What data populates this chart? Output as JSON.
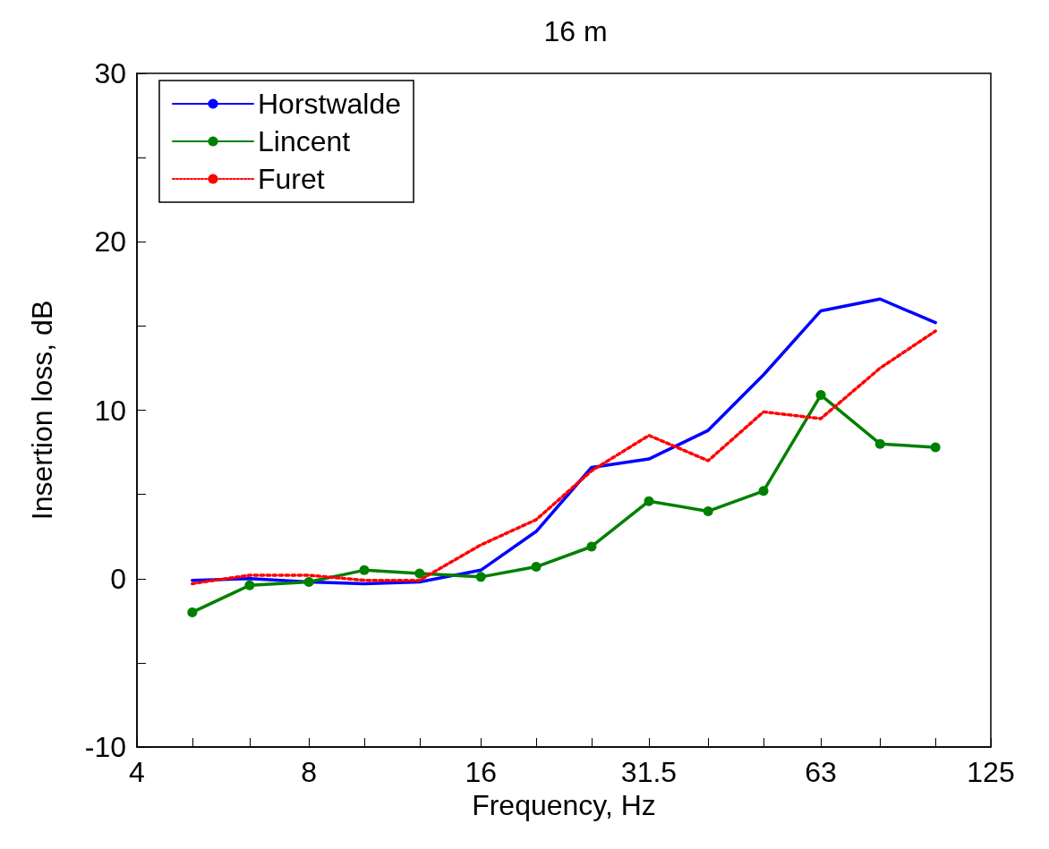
{
  "chart_data": {
    "type": "line",
    "title": "16 m",
    "xlabel": "Frequency, Hz",
    "ylabel": "Insertion loss, dB",
    "x": [
      5,
      6.3,
      8,
      10,
      12.5,
      16,
      20,
      25,
      31.5,
      40,
      50,
      63,
      80,
      100
    ],
    "series": [
      {
        "name": "Horstwalde",
        "color": "#0000ff",
        "line_style": "solid",
        "marker": "none",
        "values": [
          -0.1,
          0,
          -0.2,
          -0.3,
          -0.2,
          0.5,
          2.8,
          6.6,
          7.1,
          8.8,
          12.1,
          15.9,
          16.6,
          15.2
        ]
      },
      {
        "name": "Lincent",
        "color": "#008000",
        "line_style": "solid",
        "marker": "circle",
        "values": [
          -2.0,
          -0.4,
          -0.2,
          0.5,
          0.3,
          0.1,
          0.7,
          1.9,
          4.6,
          4.0,
          5.2,
          10.9,
          8.0,
          7.8
        ]
      },
      {
        "name": "Furet",
        "color": "#ff0000",
        "line_style": "dotted",
        "marker": "none",
        "values": [
          -0.3,
          0.2,
          0.2,
          -0.1,
          -0.1,
          2.0,
          3.5,
          6.4,
          8.5,
          7.0,
          9.9,
          9.5,
          12.5,
          14.7
        ]
      }
    ],
    "log": "x",
    "xlim": [
      4,
      125
    ],
    "xticks": [
      4,
      {
        "value": 5,
        "label": null
      },
      {
        "value": 6.3,
        "label": null
      },
      8,
      {
        "value": 10,
        "label": null
      },
      {
        "value": 12.5,
        "label": null
      },
      16,
      {
        "value": 20,
        "label": null
      },
      {
        "value": 25,
        "label": null
      },
      31.5,
      {
        "value": 40,
        "label": null
      },
      {
        "value": 50,
        "label": null
      },
      63,
      {
        "value": 80,
        "label": null
      },
      {
        "value": 100,
        "label": null
      },
      125
    ],
    "ylim": [
      -10,
      30
    ],
    "yticks": [
      -10,
      {
        "value": -5,
        "label": null
      },
      0,
      {
        "value": 5,
        "label": null
      },
      10,
      {
        "value": 15,
        "label": null
      },
      20,
      {
        "value": 25,
        "label": null
      },
      30
    ],
    "grid": false,
    "legend": "top left"
  }
}
